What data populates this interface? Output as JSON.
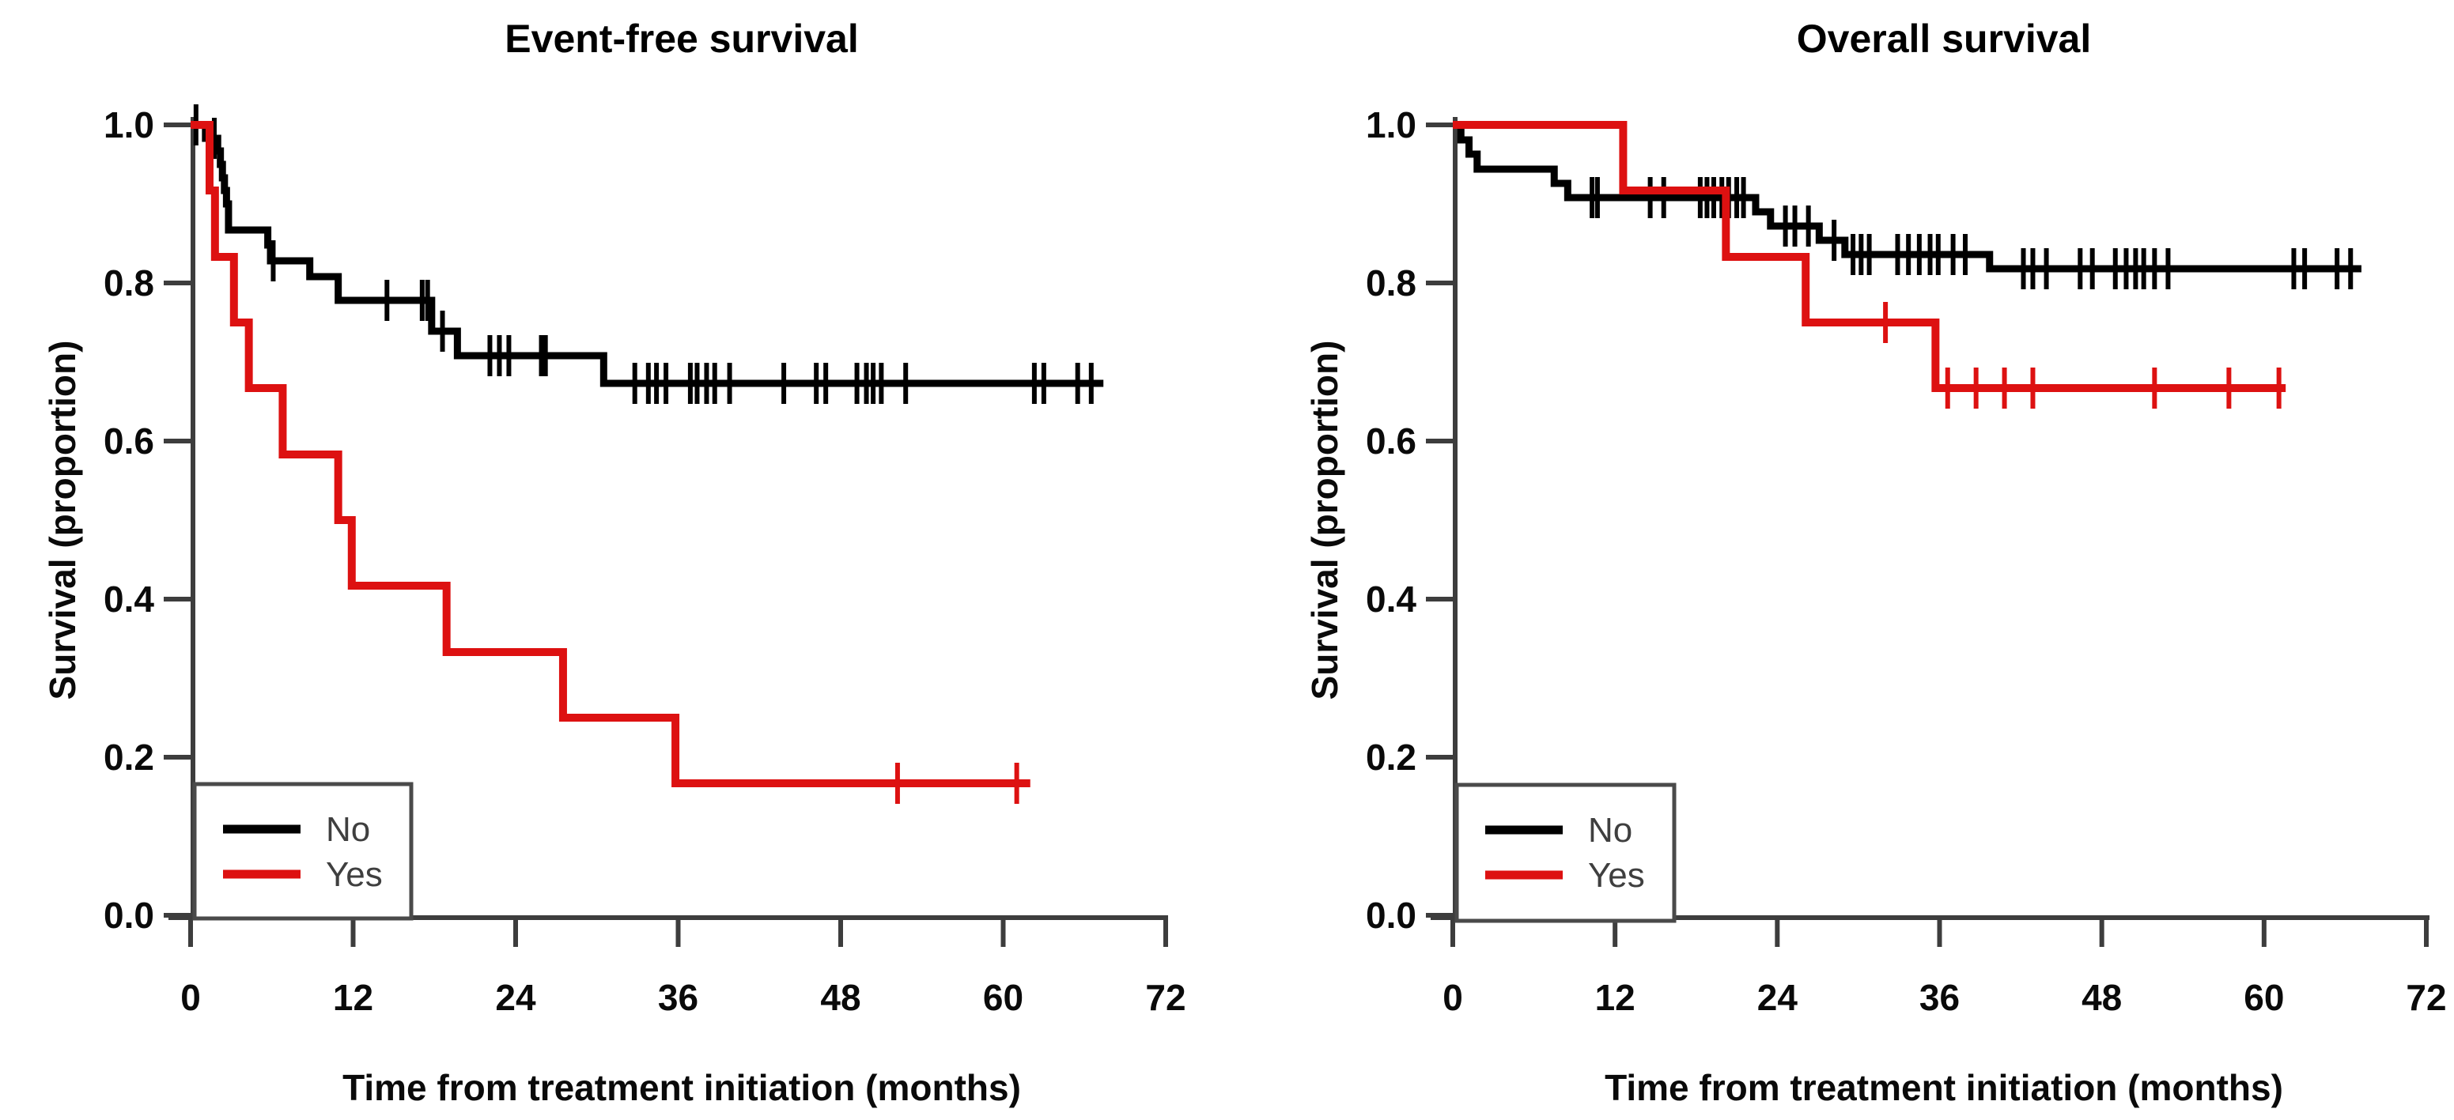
{
  "figure": {
    "background": "#ffffff",
    "charts": [
      {
        "id": "event-free-survival",
        "type": "km_step",
        "title": "Event-free survival",
        "xlabel": "Time from treatment initiation (months)",
        "ylabel": "Survival (proportion)",
        "xlim": [
          0,
          72
        ],
        "ylim": [
          0.0,
          1.0
        ],
        "xticks": [
          {
            "value": 0,
            "label": "0"
          },
          {
            "value": 12,
            "label": "12"
          },
          {
            "value": 24,
            "label": "24"
          },
          {
            "value": 36,
            "label": "36"
          },
          {
            "value": 48,
            "label": "48"
          },
          {
            "value": 60,
            "label": "60"
          },
          {
            "value": 72,
            "label": "72"
          }
        ],
        "yticks": [
          {
            "value": 0.0,
            "label": "0.0"
          },
          {
            "value": 0.2,
            "label": "0.2"
          },
          {
            "value": 0.4,
            "label": "0.4"
          },
          {
            "value": 0.6,
            "label": "0.6"
          },
          {
            "value": 0.8,
            "label": "0.8"
          },
          {
            "value": 1.0,
            "label": "1.0"
          }
        ],
        "legend": {
          "position": "bottom-left",
          "entries": [
            {
              "label": "No",
              "color": "#000000"
            },
            {
              "label": "Yes",
              "color": "#dd1111"
            }
          ]
        },
        "chart_data": true,
        "series": [
          {
            "name": "No",
            "color": "#000000",
            "stroke_width": 9,
            "steps": [
              [
                0,
                1.0
              ],
              [
                1.1,
                0.983
              ],
              [
                2.0,
                0.967
              ],
              [
                2.2,
                0.95
              ],
              [
                2.35,
                0.933
              ],
              [
                2.5,
                0.917
              ],
              [
                2.65,
                0.9
              ],
              [
                2.8,
                0.867
              ],
              [
                5.7,
                0.848
              ],
              [
                5.9,
                0.828
              ],
              [
                8.8,
                0.808
              ],
              [
                10.9,
                0.778
              ],
              [
                17.8,
                0.739
              ],
              [
                19.7,
                0.708
              ],
              [
                30.5,
                0.673
              ]
            ],
            "end": 67.4,
            "censors": [
              0.4,
              1.75,
              6.1,
              14.5,
              17.1,
              17.5,
              18.6,
              22.1,
              22.8,
              23.5,
              25.9,
              26.2,
              32.8,
              33.8,
              34.4,
              35.1,
              36.9,
              37.4,
              38.1,
              38.7,
              39.8,
              43.8,
              46.2,
              46.9,
              49.2,
              49.9,
              50.4,
              51.0,
              52.8,
              62.3,
              63.0,
              65.5,
              66.5
            ]
          },
          {
            "name": "Yes",
            "color": "#dd1111",
            "stroke_width": 10,
            "steps": [
              [
                0,
                1.0
              ],
              [
                1.4,
                0.917
              ],
              [
                1.8,
                0.833
              ],
              [
                3.2,
                0.75
              ],
              [
                4.3,
                0.667
              ],
              [
                6.8,
                0.583
              ],
              [
                10.9,
                0.5
              ],
              [
                11.9,
                0.417
              ],
              [
                18.9,
                0.333
              ],
              [
                27.5,
                0.25
              ],
              [
                35.8,
                0.167
              ]
            ],
            "end": 62.0,
            "censors": [
              52.2,
              61.0
            ]
          }
        ]
      },
      {
        "id": "overall-survival",
        "type": "km_step",
        "title": "Overall survival",
        "xlabel": "Time from treatment initiation (months)",
        "ylabel": "Survival (proportion)",
        "xlim": [
          0,
          72
        ],
        "ylim": [
          0.0,
          1.0
        ],
        "xticks": [
          {
            "value": 0,
            "label": "0"
          },
          {
            "value": 12,
            "label": "12"
          },
          {
            "value": 24,
            "label": "24"
          },
          {
            "value": 36,
            "label": "36"
          },
          {
            "value": 48,
            "label": "48"
          },
          {
            "value": 60,
            "label": "60"
          },
          {
            "value": 72,
            "label": "72"
          }
        ],
        "yticks": [
          {
            "value": 0.0,
            "label": "0.0"
          },
          {
            "value": 0.2,
            "label": "0.2"
          },
          {
            "value": 0.4,
            "label": "0.4"
          },
          {
            "value": 0.6,
            "label": "0.6"
          },
          {
            "value": 0.8,
            "label": "0.8"
          },
          {
            "value": 1.0,
            "label": "1.0"
          }
        ],
        "legend": {
          "position": "bottom-left",
          "entries": [
            {
              "label": "No",
              "color": "#000000"
            },
            {
              "label": "Yes",
              "color": "#dd1111"
            }
          ]
        },
        "chart_data": true,
        "series": [
          {
            "name": "No",
            "color": "#000000",
            "stroke_width": 9,
            "steps": [
              [
                0,
                1.0
              ],
              [
                0.6,
                0.981
              ],
              [
                1.2,
                0.963
              ],
              [
                1.8,
                0.944
              ],
              [
                7.5,
                0.926
              ],
              [
                8.5,
                0.908
              ],
              [
                22.4,
                0.89
              ],
              [
                23.5,
                0.872
              ],
              [
                27.1,
                0.854
              ],
              [
                29.0,
                0.836
              ],
              [
                39.7,
                0.818
              ]
            ],
            "end": 67.2,
            "censors": [
              10.3,
              10.7,
              14.6,
              15.6,
              18.3,
              18.8,
              19.3,
              19.9,
              20.4,
              21.0,
              21.5,
              24.6,
              25.3,
              26.3,
              28.2,
              29.6,
              30.2,
              30.8,
              32.9,
              33.7,
              34.5,
              35.3,
              35.9,
              37.0,
              37.9,
              42.2,
              42.9,
              43.9,
              46.4,
              47.3,
              49.0,
              49.8,
              50.5,
              51.1,
              51.9,
              52.9,
              62.2,
              63.0,
              65.4,
              66.4
            ]
          },
          {
            "name": "Yes",
            "color": "#dd1111",
            "stroke_width": 10,
            "steps": [
              [
                0,
                1.0
              ],
              [
                12.6,
                0.917
              ],
              [
                20.2,
                0.833
              ],
              [
                26.1,
                0.75
              ],
              [
                35.7,
                0.667
              ]
            ],
            "end": 61.6,
            "censors": [
              32.0,
              36.6,
              38.7,
              40.8,
              42.9,
              51.9,
              57.4,
              61.1
            ]
          }
        ]
      }
    ]
  }
}
